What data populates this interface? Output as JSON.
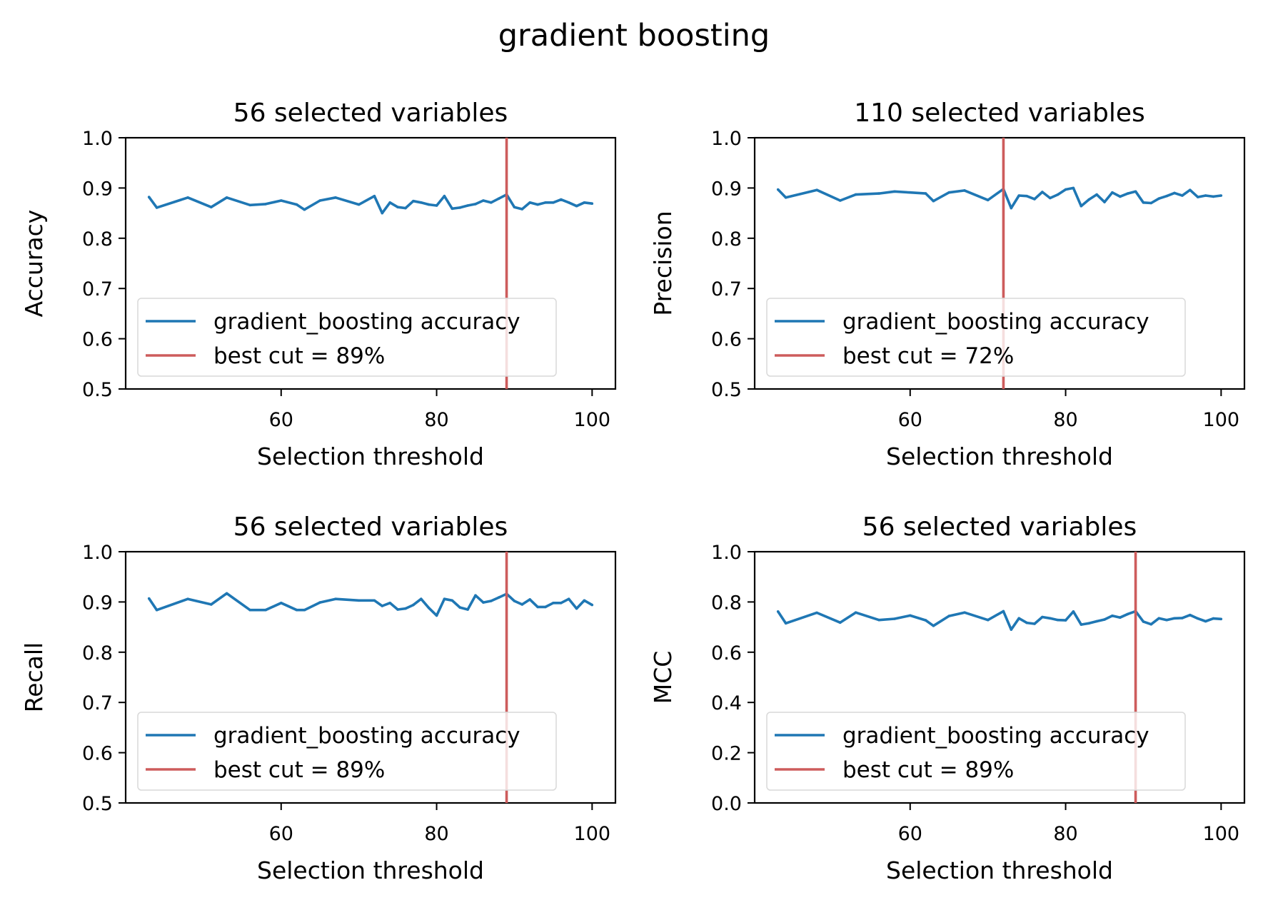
{
  "figure": {
    "suptitle": "gradient boosting"
  },
  "chart_data": [
    {
      "type": "line",
      "title": "56 selected variables",
      "xlabel": "Selection threshold",
      "ylabel": "Accuracy",
      "xlim": [
        40,
        103
      ],
      "ylim": [
        0.5,
        1.0
      ],
      "xticks": [
        60,
        80,
        100
      ],
      "yticks": [
        0.5,
        0.6,
        0.7,
        0.8,
        0.9,
        1.0
      ],
      "x_tick_labels": [
        "60",
        "80",
        "100"
      ],
      "y_tick_labels": [
        "0.5",
        "0.6",
        "0.7",
        "0.8",
        "0.9",
        "1.0"
      ],
      "best_cut": 89,
      "legend_position": "lower left",
      "series": [
        {
          "name": "gradient_boosting accuracy",
          "color": "#1f77b4",
          "x": [
            43,
            44,
            48,
            51,
            53,
            56,
            58,
            60,
            62,
            63,
            65,
            67,
            70,
            72,
            73,
            74,
            75,
            76,
            77,
            78,
            79,
            80,
            81,
            82,
            83,
            84,
            85,
            86,
            87,
            88,
            89,
            90,
            91,
            92,
            93,
            94,
            95,
            96,
            97,
            98,
            99,
            100
          ],
          "values": [
            0.882,
            0.861,
            0.881,
            0.862,
            0.881,
            0.866,
            0.868,
            0.875,
            0.867,
            0.857,
            0.875,
            0.881,
            0.867,
            0.884,
            0.85,
            0.871,
            0.862,
            0.86,
            0.874,
            0.871,
            0.867,
            0.865,
            0.884,
            0.859,
            0.861,
            0.865,
            0.868,
            0.875,
            0.871,
            0.879,
            0.887,
            0.862,
            0.858,
            0.871,
            0.867,
            0.871,
            0.871,
            0.877,
            0.871,
            0.864,
            0.871,
            0.869
          ]
        },
        {
          "name": "best cut = 89%",
          "color": "#cd5c5c",
          "x_value": 89
        }
      ]
    },
    {
      "type": "line",
      "title": "110 selected variables",
      "xlabel": "Selection threshold",
      "ylabel": "Precision",
      "xlim": [
        40,
        103
      ],
      "ylim": [
        0.5,
        1.0
      ],
      "xticks": [
        60,
        80,
        100
      ],
      "yticks": [
        0.5,
        0.6,
        0.7,
        0.8,
        0.9,
        1.0
      ],
      "x_tick_labels": [
        "60",
        "80",
        "100"
      ],
      "y_tick_labels": [
        "0.5",
        "0.6",
        "0.7",
        "0.8",
        "0.9",
        "1.0"
      ],
      "best_cut": 72,
      "legend_position": "lower left",
      "series": [
        {
          "name": "gradient_boosting accuracy",
          "color": "#1f77b4",
          "x": [
            43,
            44,
            48,
            51,
            53,
            56,
            58,
            60,
            62,
            63,
            65,
            67,
            70,
            72,
            73,
            74,
            75,
            76,
            77,
            78,
            79,
            80,
            81,
            82,
            83,
            84,
            85,
            86,
            87,
            88,
            89,
            90,
            91,
            92,
            93,
            94,
            95,
            96,
            97,
            98,
            99,
            100
          ],
          "values": [
            0.897,
            0.881,
            0.896,
            0.875,
            0.887,
            0.889,
            0.893,
            0.891,
            0.889,
            0.874,
            0.891,
            0.895,
            0.876,
            0.898,
            0.86,
            0.885,
            0.884,
            0.878,
            0.892,
            0.88,
            0.887,
            0.897,
            0.9,
            0.864,
            0.877,
            0.887,
            0.872,
            0.891,
            0.883,
            0.889,
            0.893,
            0.871,
            0.87,
            0.879,
            0.884,
            0.89,
            0.885,
            0.896,
            0.882,
            0.885,
            0.883,
            0.885
          ]
        },
        {
          "name": "best cut = 72%",
          "color": "#cd5c5c",
          "x_value": 72
        }
      ]
    },
    {
      "type": "line",
      "title": "56 selected variables",
      "xlabel": "Selection threshold",
      "ylabel": "Recall",
      "xlim": [
        40,
        103
      ],
      "ylim": [
        0.5,
        1.0
      ],
      "xticks": [
        60,
        80,
        100
      ],
      "yticks": [
        0.5,
        0.6,
        0.7,
        0.8,
        0.9,
        1.0
      ],
      "x_tick_labels": [
        "60",
        "80",
        "100"
      ],
      "y_tick_labels": [
        "0.5",
        "0.6",
        "0.7",
        "0.8",
        "0.9",
        "1.0"
      ],
      "best_cut": 89,
      "legend_position": "lower left",
      "series": [
        {
          "name": "gradient_boosting accuracy",
          "color": "#1f77b4",
          "x": [
            43,
            44,
            48,
            51,
            53,
            56,
            58,
            60,
            62,
            63,
            65,
            67,
            70,
            72,
            73,
            74,
            75,
            76,
            77,
            78,
            79,
            80,
            81,
            82,
            83,
            84,
            85,
            86,
            87,
            88,
            89,
            90,
            91,
            92,
            93,
            94,
            95,
            96,
            97,
            98,
            99,
            100
          ],
          "values": [
            0.907,
            0.884,
            0.906,
            0.895,
            0.917,
            0.884,
            0.884,
            0.898,
            0.884,
            0.884,
            0.899,
            0.906,
            0.903,
            0.903,
            0.892,
            0.898,
            0.885,
            0.887,
            0.894,
            0.906,
            0.888,
            0.873,
            0.906,
            0.903,
            0.889,
            0.885,
            0.913,
            0.899,
            0.902,
            0.909,
            0.916,
            0.902,
            0.895,
            0.905,
            0.89,
            0.89,
            0.898,
            0.898,
            0.906,
            0.887,
            0.903,
            0.894
          ]
        },
        {
          "name": "best cut = 89%",
          "color": "#cd5c5c",
          "x_value": 89
        }
      ]
    },
    {
      "type": "line",
      "title": "56 selected variables",
      "xlabel": "Selection threshold",
      "ylabel": "MCC",
      "xlim": [
        40,
        103
      ],
      "ylim": [
        0.0,
        1.0
      ],
      "xticks": [
        60,
        80,
        100
      ],
      "yticks": [
        0.0,
        0.2,
        0.4,
        0.6,
        0.8,
        1.0
      ],
      "x_tick_labels": [
        "60",
        "80",
        "100"
      ],
      "y_tick_labels": [
        "0.0",
        "0.2",
        "0.4",
        "0.6",
        "0.8",
        "1.0"
      ],
      "best_cut": 89,
      "legend_position": "lower left",
      "series": [
        {
          "name": "gradient_boosting accuracy",
          "color": "#1f77b4",
          "x": [
            43,
            44,
            48,
            51,
            53,
            56,
            58,
            60,
            62,
            63,
            65,
            67,
            70,
            72,
            73,
            74,
            75,
            76,
            77,
            78,
            79,
            80,
            81,
            82,
            83,
            84,
            85,
            86,
            87,
            88,
            89,
            90,
            91,
            92,
            93,
            94,
            95,
            96,
            97,
            98,
            99,
            100
          ],
          "values": [
            0.762,
            0.715,
            0.757,
            0.718,
            0.758,
            0.728,
            0.733,
            0.746,
            0.727,
            0.705,
            0.744,
            0.758,
            0.728,
            0.763,
            0.69,
            0.735,
            0.717,
            0.713,
            0.74,
            0.735,
            0.728,
            0.727,
            0.762,
            0.71,
            0.715,
            0.723,
            0.73,
            0.745,
            0.738,
            0.752,
            0.763,
            0.722,
            0.711,
            0.735,
            0.728,
            0.735,
            0.736,
            0.748,
            0.734,
            0.723,
            0.734,
            0.732
          ]
        },
        {
          "name": "best cut = 89%",
          "color": "#cd5c5c",
          "x_value": 89
        }
      ]
    }
  ]
}
